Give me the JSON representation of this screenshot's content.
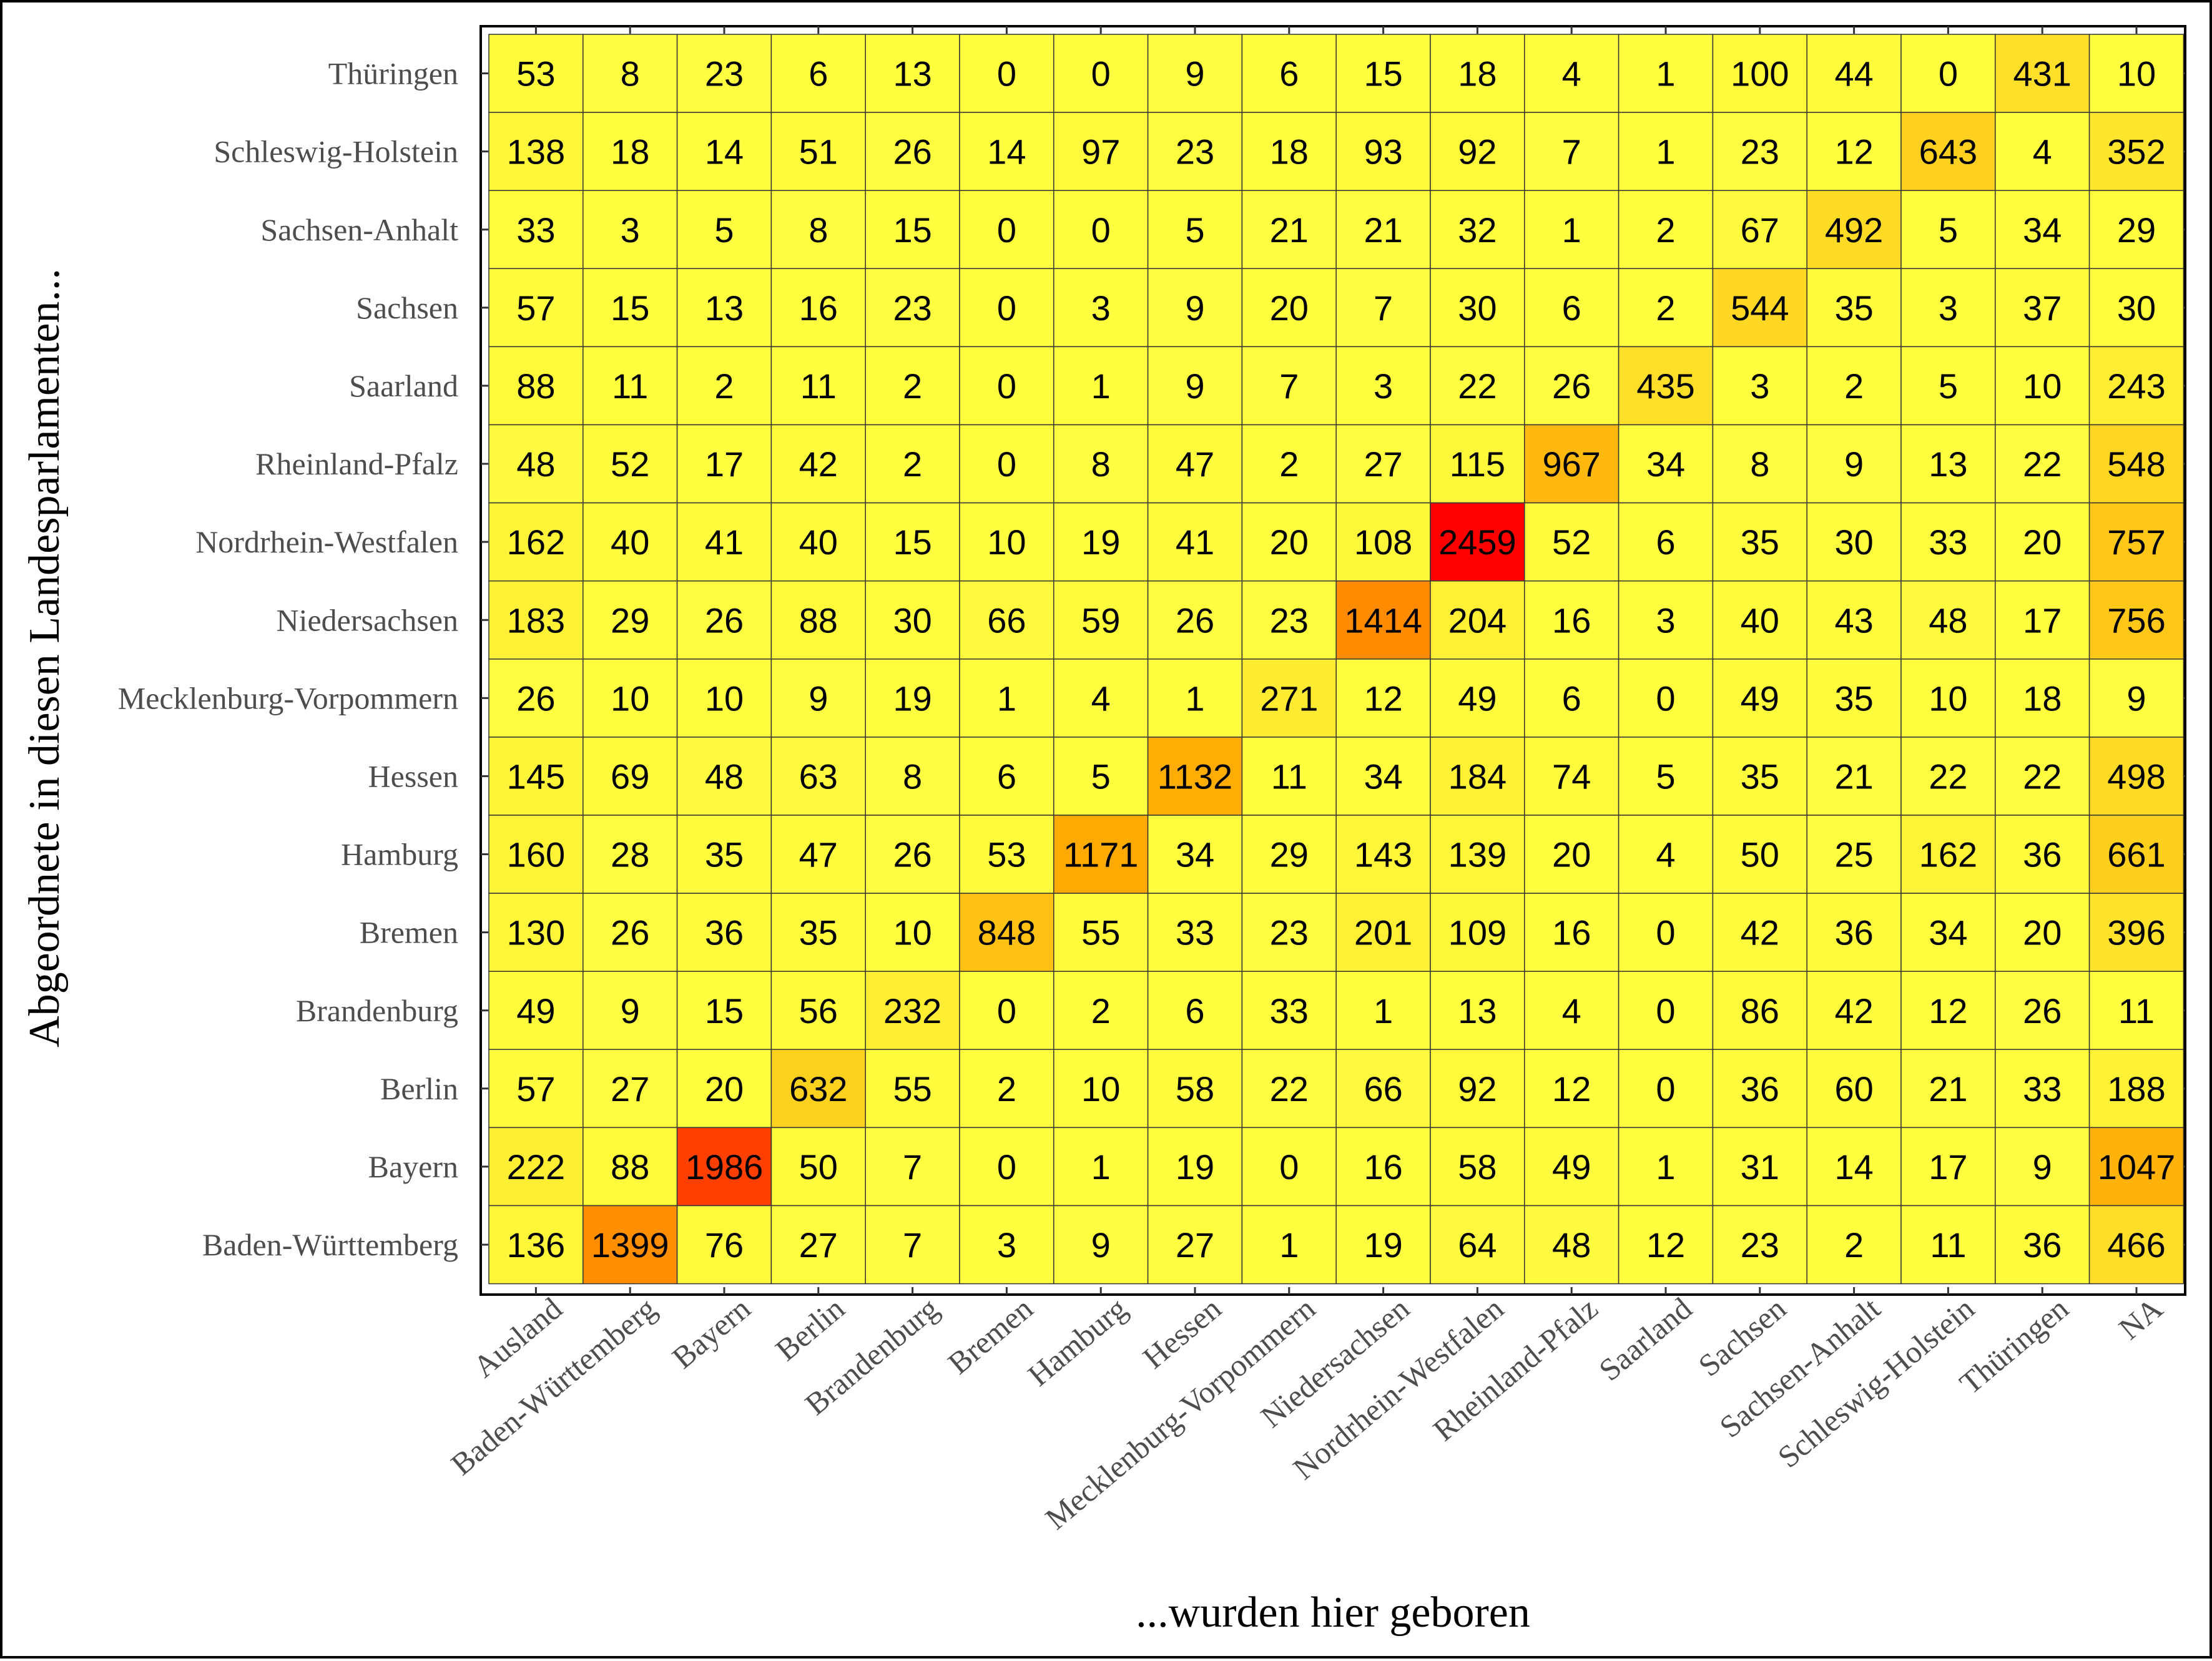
{
  "chart_data": {
    "type": "heatmap",
    "xlabel": "...wurden hier geboren",
    "ylabel": "Abgeordnete in diesen Landesparlamenten...",
    "x_categories": [
      "Ausland",
      "Baden-Württemberg",
      "Bayern",
      "Berlin",
      "Brandenburg",
      "Bremen",
      "Hamburg",
      "Hessen",
      "Mecklenburg-Vorpommern",
      "Niedersachsen",
      "Nordrhein-Westfalen",
      "Rheinland-Pfalz",
      "Saarland",
      "Sachsen",
      "Sachsen-Anhalt",
      "Schleswig-Holstein",
      "Thüringen",
      "NA"
    ],
    "y_categories_top_to_bottom": [
      "Thüringen",
      "Schleswig-Holstein",
      "Sachsen-Anhalt",
      "Sachsen",
      "Saarland",
      "Rheinland-Pfalz",
      "Nordrhein-Westfalen",
      "Niedersachsen",
      "Mecklenburg-Vorpommern",
      "Hessen",
      "Hamburg",
      "Bremen",
      "Brandenburg",
      "Berlin",
      "Bayern",
      "Baden-Württemberg"
    ],
    "values": [
      [
        53,
        8,
        23,
        6,
        13,
        0,
        0,
        9,
        6,
        15,
        18,
        4,
        1,
        100,
        44,
        0,
        431,
        10
      ],
      [
        138,
        18,
        14,
        51,
        26,
        14,
        97,
        23,
        18,
        93,
        92,
        7,
        1,
        23,
        12,
        643,
        4,
        352
      ],
      [
        33,
        3,
        5,
        8,
        15,
        0,
        0,
        5,
        21,
        21,
        32,
        1,
        2,
        67,
        492,
        5,
        34,
        29
      ],
      [
        57,
        15,
        13,
        16,
        23,
        0,
        3,
        9,
        20,
        7,
        30,
        6,
        2,
        544,
        35,
        3,
        37,
        30
      ],
      [
        88,
        11,
        2,
        11,
        2,
        0,
        1,
        9,
        7,
        3,
        22,
        26,
        435,
        3,
        2,
        5,
        10,
        243
      ],
      [
        48,
        52,
        17,
        42,
        2,
        0,
        8,
        47,
        2,
        27,
        115,
        967,
        34,
        8,
        9,
        13,
        22,
        548
      ],
      [
        162,
        40,
        41,
        40,
        15,
        10,
        19,
        41,
        20,
        108,
        2459,
        52,
        6,
        35,
        30,
        33,
        20,
        757
      ],
      [
        183,
        29,
        26,
        88,
        30,
        66,
        59,
        26,
        23,
        1414,
        204,
        16,
        3,
        40,
        43,
        48,
        17,
        756
      ],
      [
        26,
        10,
        10,
        9,
        19,
        1,
        4,
        1,
        271,
        12,
        49,
        6,
        0,
        49,
        35,
        10,
        18,
        9
      ],
      [
        145,
        69,
        48,
        63,
        8,
        6,
        5,
        1132,
        11,
        34,
        184,
        74,
        5,
        35,
        21,
        22,
        22,
        498
      ],
      [
        160,
        28,
        35,
        47,
        26,
        53,
        1171,
        34,
        29,
        143,
        139,
        20,
        4,
        50,
        25,
        162,
        36,
        661
      ],
      [
        130,
        26,
        36,
        35,
        10,
        848,
        55,
        33,
        23,
        201,
        109,
        16,
        0,
        42,
        36,
        34,
        20,
        396
      ],
      [
        49,
        9,
        15,
        56,
        232,
        0,
        2,
        6,
        33,
        1,
        13,
        4,
        0,
        86,
        42,
        12,
        26,
        11
      ],
      [
        57,
        27,
        20,
        632,
        55,
        2,
        10,
        58,
        22,
        66,
        92,
        12,
        0,
        36,
        60,
        21,
        33,
        188
      ],
      [
        222,
        88,
        1986,
        50,
        7,
        0,
        1,
        19,
        0,
        16,
        58,
        49,
        1,
        31,
        14,
        17,
        9,
        1047
      ],
      [
        136,
        1399,
        76,
        27,
        7,
        3,
        9,
        27,
        1,
        19,
        64,
        48,
        12,
        23,
        2,
        11,
        36,
        466
      ]
    ],
    "color_scale": {
      "low": "#ffff40",
      "mid": "#ffa500",
      "high": "#ff0000",
      "min": 0,
      "max": 2459
    },
    "legend": "none",
    "grid": false
  }
}
